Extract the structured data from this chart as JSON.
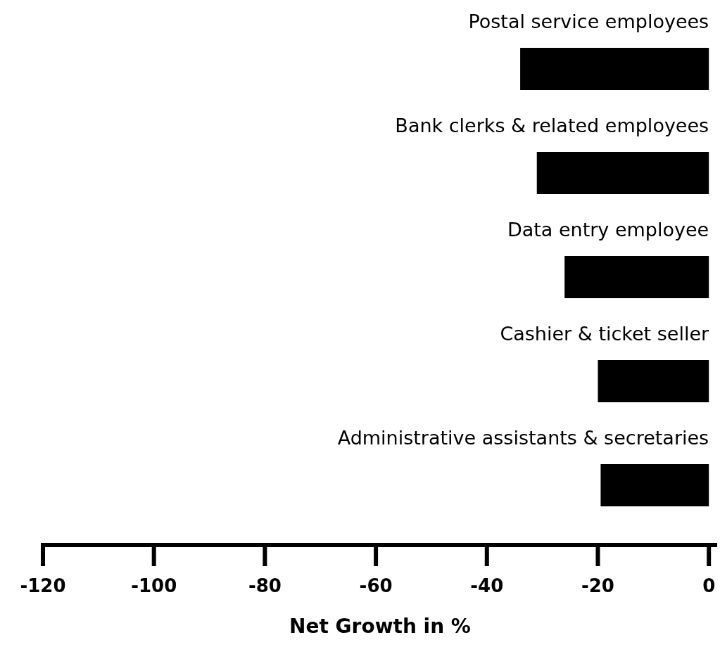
{
  "chart_data": {
    "type": "bar",
    "orientation": "horizontal",
    "xlabel": "Net Growth in %",
    "categories": [
      "Postal service employees",
      "Bank clerks & related employees",
      "Data entry employee",
      "Cashier & ticket seller",
      "Administrative assistants & secretaries"
    ],
    "values": [
      -34,
      -31,
      -26,
      -20,
      -19.5
    ],
    "color": "#000000",
    "xlim": [
      -120,
      1.5
    ],
    "xticks": [
      -120,
      -100,
      -80,
      -60,
      -40,
      -20,
      0
    ],
    "grid": false
  }
}
